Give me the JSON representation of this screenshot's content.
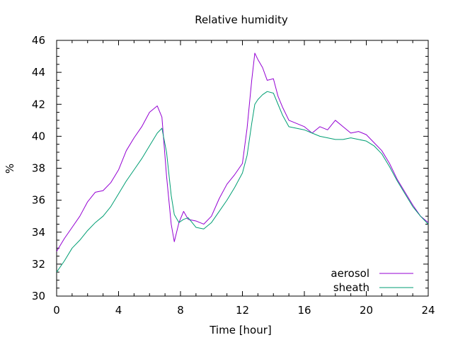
{
  "chart_data": {
    "type": "line",
    "title": "Relative humidity",
    "xlabel": "Time [hour]",
    "ylabel": "%",
    "xlim": [
      0,
      24
    ],
    "ylim": [
      30,
      46
    ],
    "xticks": [
      0,
      4,
      8,
      12,
      16,
      20,
      24
    ],
    "yticks": [
      30,
      32,
      34,
      36,
      38,
      40,
      42,
      44,
      46
    ],
    "grid": false,
    "legend_position": "bottom-right",
    "series": [
      {
        "name": "aerosol",
        "color": "#9400d3",
        "x": [
          0,
          0.5,
          1,
          1.5,
          2,
          2.5,
          3,
          3.5,
          4,
          4.5,
          5,
          5.5,
          6,
          6.5,
          6.8,
          7.1,
          7.4,
          7.6,
          7.9,
          8.2,
          8.5,
          9,
          9.5,
          10,
          10.5,
          11,
          11.5,
          12,
          12.3,
          12.6,
          12.8,
          13,
          13.3,
          13.6,
          14,
          14.3,
          14.6,
          15,
          15.5,
          16,
          16.5,
          17,
          17.5,
          18,
          18.5,
          19,
          19.5,
          20,
          20.5,
          21,
          21.5,
          22,
          22.5,
          23,
          23.5,
          24
        ],
        "y": [
          32.8,
          33.6,
          34.3,
          35.0,
          35.9,
          36.5,
          36.6,
          37.1,
          37.9,
          39.1,
          39.9,
          40.6,
          41.5,
          41.9,
          41.2,
          37.5,
          34.5,
          33.4,
          34.6,
          35.3,
          34.8,
          34.7,
          34.5,
          35.0,
          36.1,
          37.0,
          37.6,
          38.3,
          40.5,
          43.5,
          45.2,
          44.8,
          44.3,
          43.5,
          43.6,
          42.5,
          41.8,
          41.0,
          40.8,
          40.6,
          40.2,
          40.6,
          40.4,
          41.0,
          40.6,
          40.2,
          40.3,
          40.1,
          39.6,
          39.1,
          38.3,
          37.3,
          36.5,
          35.7,
          35.0,
          34.6
        ]
      },
      {
        "name": "sheath",
        "color": "#009e73",
        "x": [
          0,
          0.5,
          1,
          1.5,
          2,
          2.5,
          3,
          3.5,
          4,
          4.5,
          5,
          5.5,
          6,
          6.5,
          6.8,
          7.1,
          7.4,
          7.6,
          7.9,
          8.2,
          8.5,
          9,
          9.5,
          10,
          10.5,
          11,
          11.5,
          12,
          12.3,
          12.6,
          12.8,
          13,
          13.3,
          13.6,
          14,
          14.3,
          14.6,
          15,
          15.5,
          16,
          16.5,
          17,
          17.5,
          18,
          18.5,
          19,
          19.5,
          20,
          20.5,
          21,
          21.5,
          22,
          22.5,
          23,
          23.5,
          24
        ],
        "y": [
          31.5,
          32.2,
          33.0,
          33.5,
          34.1,
          34.6,
          35.0,
          35.6,
          36.4,
          37.2,
          37.9,
          38.6,
          39.4,
          40.2,
          40.5,
          39.0,
          36.3,
          35.1,
          34.6,
          34.8,
          34.9,
          34.3,
          34.2,
          34.6,
          35.3,
          36.0,
          36.8,
          37.7,
          38.8,
          40.8,
          42.0,
          42.3,
          42.6,
          42.8,
          42.7,
          42.0,
          41.3,
          40.6,
          40.5,
          40.4,
          40.2,
          40.0,
          39.9,
          39.8,
          39.8,
          39.9,
          39.8,
          39.7,
          39.4,
          38.9,
          38.1,
          37.2,
          36.4,
          35.6,
          35.0,
          34.5
        ]
      }
    ]
  }
}
